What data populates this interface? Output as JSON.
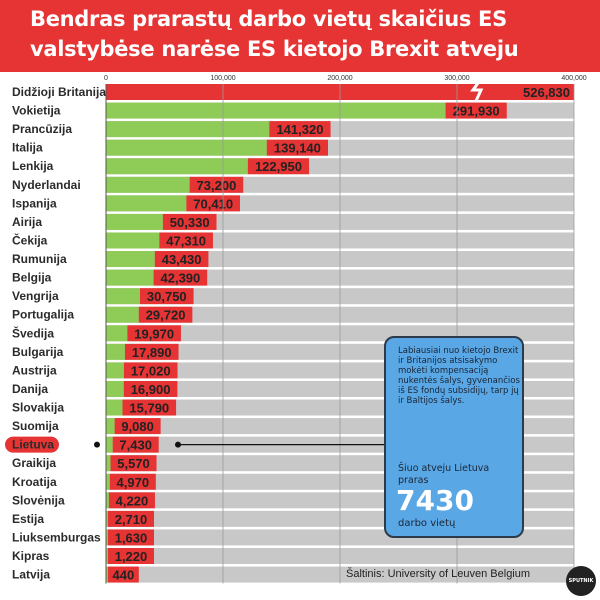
{
  "header": {
    "title_line1": "Bendras prarastų darbo vietų skaičius ES",
    "title_line2": "valstybėse narėse ES kietojo Brexit atveju"
  },
  "chart_data": {
    "type": "bar",
    "orientation": "horizontal",
    "x_ticks": [
      "0",
      "100,000",
      "200,000",
      "300,000",
      "400,000"
    ],
    "xlim": [
      0,
      400000
    ],
    "axis_break": true,
    "categories": [
      "Didžioji Britanija",
      "Vokietija",
      "Prancūzija",
      "Italija",
      "Lenkija",
      "Nyderlandai",
      "Ispanija",
      "Airija",
      "Čekija",
      "Rumunija",
      "Belgija",
      "Vengrija",
      "Portugalija",
      "Švedija",
      "Bulgarija",
      "Austrija",
      "Danija",
      "Slovakija",
      "Suomija",
      "Lietuva",
      "Graikija",
      "Kroatija",
      "Slovėnija",
      "Estija",
      "Liuksemburgas",
      "Kipras",
      "Latvija"
    ],
    "values": [
      526830,
      291930,
      141320,
      139140,
      122950,
      73200,
      70410,
      50330,
      47310,
      43430,
      42390,
      30750,
      29720,
      19970,
      17890,
      17020,
      16900,
      15790,
      9080,
      7430,
      5570,
      4970,
      4220,
      2710,
      1630,
      1220,
      440
    ],
    "value_labels": [
      "526,830",
      "291,930",
      "141,320",
      "139,140",
      "122,950",
      "73,200",
      "70,410",
      "50,330",
      "47,310",
      "43,430",
      "42,390",
      "30,750",
      "29,720",
      "19,970",
      "17,890",
      "17,020",
      "16,900",
      "15,790",
      "9,080",
      "7,430",
      "5,570",
      "4,970",
      "4,220",
      "2,710",
      "1,630",
      "1,220",
      "440"
    ],
    "highlight_category": "Lietuva",
    "grid": true
  },
  "callout": {
    "text": "Labiausiai nuo kietojo Brexit ir Britanijos atsisakymo mokėti kompensaciją nukentės šalys, gyvenančios iš ES fondų subsidijų, tarp jų ir Baltijos šalys.",
    "pre": "Šiuo atveju Lietuva praras",
    "big": "7430",
    "post": "darbo vietų"
  },
  "source": "Šaltinis: University of Leuven Belgium",
  "logo": "SPUTNIK",
  "colors": {
    "header": "#e63334",
    "bar_green": "#8ecb57",
    "bar_red": "#e63334",
    "track_gray": "#c8c8c8",
    "callout_blue": "#5aa7e6"
  }
}
